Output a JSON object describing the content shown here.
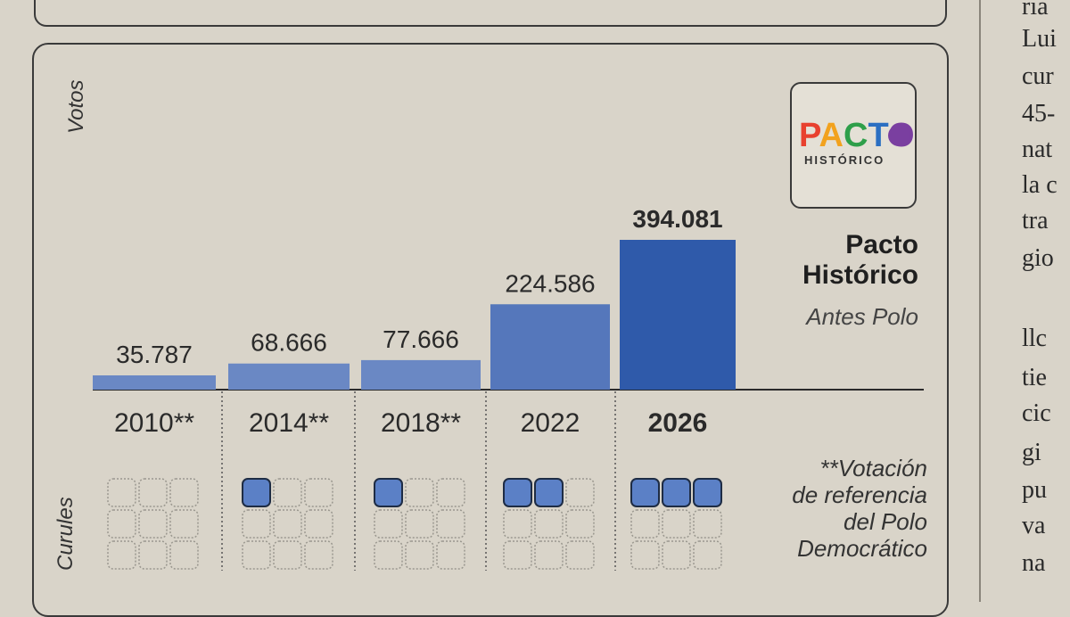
{
  "chart_data": {
    "type": "bar",
    "ylabel": "Votos",
    "seats_label": "Curules",
    "categories": [
      "2010**",
      "2014**",
      "2018**",
      "2022",
      "2026"
    ],
    "values": [
      35787,
      68666,
      77666,
      224586,
      394081
    ],
    "value_labels": [
      "35.787",
      "68.666",
      "77.666",
      "224.586",
      "394.081"
    ],
    "highlight_index": 4,
    "seats": [
      0,
      1,
      1,
      2,
      3
    ],
    "seat_capacity": 9,
    "ylim": [
      0,
      394081
    ],
    "grid": false
  },
  "party": {
    "name_line1": "Pacto",
    "name_line2": "Histórico",
    "subtitle": "Antes Polo",
    "logo_word": "PACTO",
    "logo_sub": "HISTÓRICO"
  },
  "note": {
    "line1": "**Votación",
    "line2": "de referencia",
    "line3": "del Polo",
    "line4": "Democrático"
  },
  "margin_text": [
    "ria",
    "Lui",
    "cur",
    "45-",
    "nat",
    "la c",
    "tra",
    "gio",
    "llc",
    "tie",
    "cic",
    "gi",
    "pu",
    "va",
    "na"
  ],
  "colors": {
    "bar_light": "#6a88c4",
    "bar_mid": "#5577bb",
    "bar_dark": "#2f5aaa",
    "seat_fill": "#5b80c6",
    "seat_empty": "#9a978f",
    "paper": "#d9d4c9"
  }
}
